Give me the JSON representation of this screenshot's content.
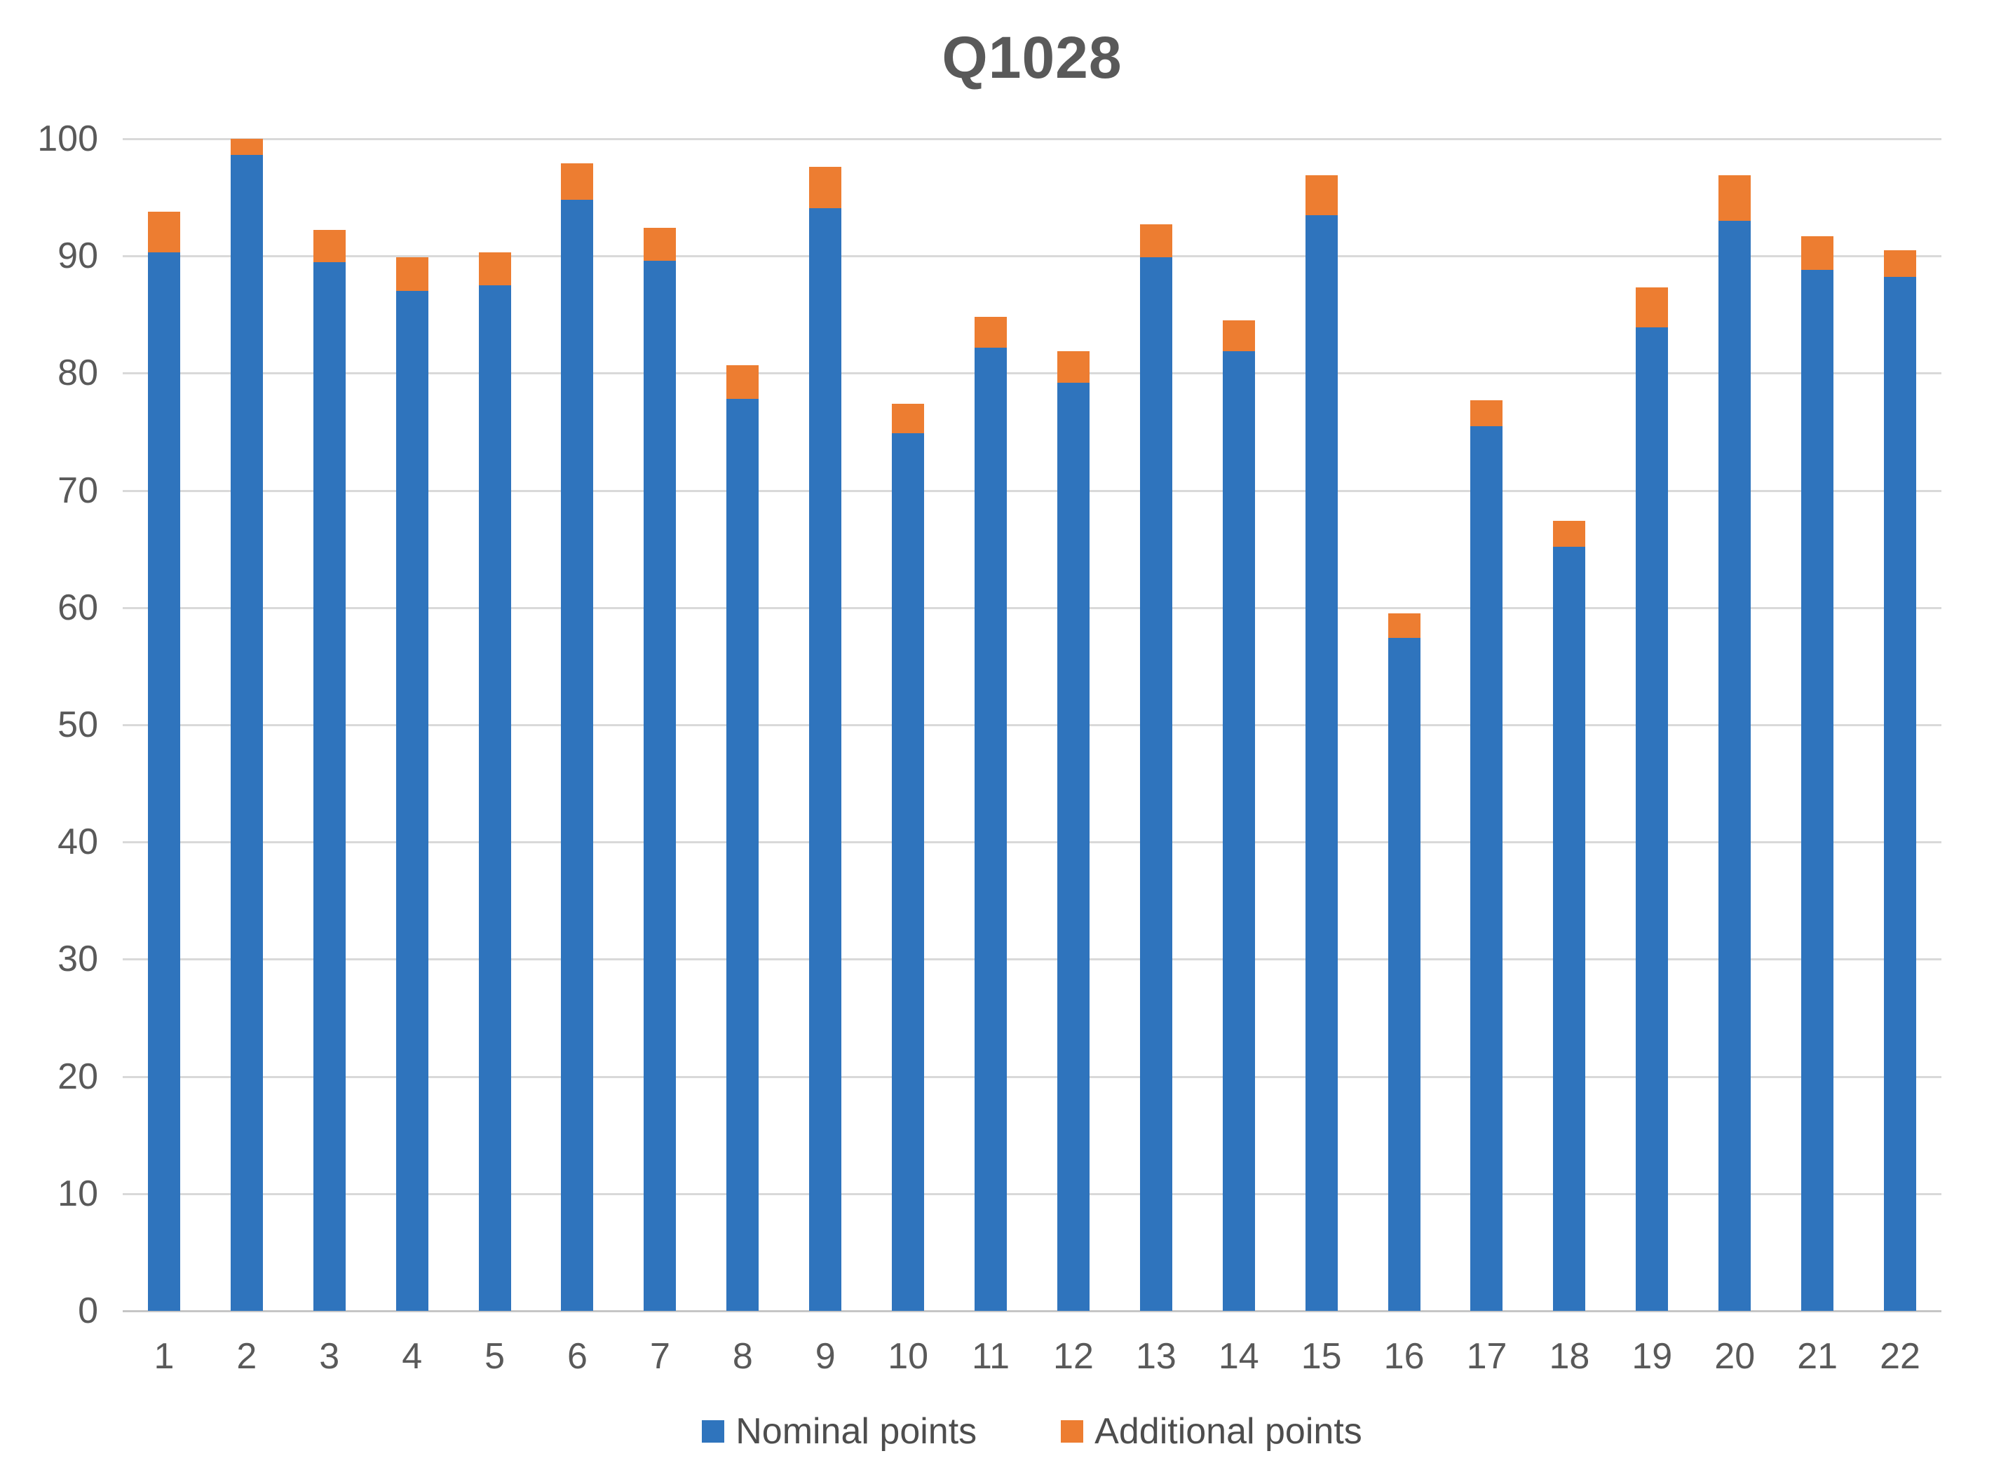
{
  "chart_data": {
    "type": "bar",
    "stacked": true,
    "title": "Q1028",
    "categories": [
      "1",
      "2",
      "3",
      "4",
      "5",
      "6",
      "7",
      "8",
      "9",
      "10",
      "11",
      "12",
      "13",
      "14",
      "15",
      "16",
      "17",
      "18",
      "19",
      "20",
      "21",
      "22"
    ],
    "series": [
      {
        "name": "Nominal points",
        "color": "#2f74bd",
        "values": [
          90.3,
          98.6,
          89.5,
          87.0,
          87.5,
          94.8,
          89.6,
          77.8,
          94.1,
          74.9,
          82.2,
          79.2,
          89.9,
          81.9,
          93.5,
          57.4,
          75.5,
          65.2,
          83.9,
          93.0,
          88.8,
          88.2
        ]
      },
      {
        "name": "Additional points",
        "color": "#ed7d31",
        "values": [
          3.5,
          1.4,
          2.7,
          2.9,
          2.8,
          3.1,
          2.8,
          2.9,
          3.5,
          2.5,
          2.6,
          2.7,
          2.8,
          2.6,
          3.4,
          2.1,
          2.2,
          2.2,
          3.4,
          3.9,
          2.9,
          2.3
        ]
      }
    ],
    "totals": [
      93.8,
      100.0,
      92.2,
      89.9,
      90.3,
      97.9,
      92.4,
      80.7,
      97.6,
      77.4,
      84.8,
      81.9,
      92.7,
      84.5,
      96.9,
      59.5,
      77.7,
      67.4,
      87.3,
      96.9,
      91.7,
      90.5
    ],
    "ylim": [
      0,
      100
    ],
    "ytick_step": 10,
    "yticks": [
      "0",
      "10",
      "20",
      "30",
      "40",
      "50",
      "60",
      "70",
      "80",
      "90",
      "100"
    ],
    "xlabel": "",
    "ylabel": "",
    "grid": true,
    "gridline_color": "#d9d9d9",
    "text_color": "#595959",
    "legend_position": "bottom"
  }
}
